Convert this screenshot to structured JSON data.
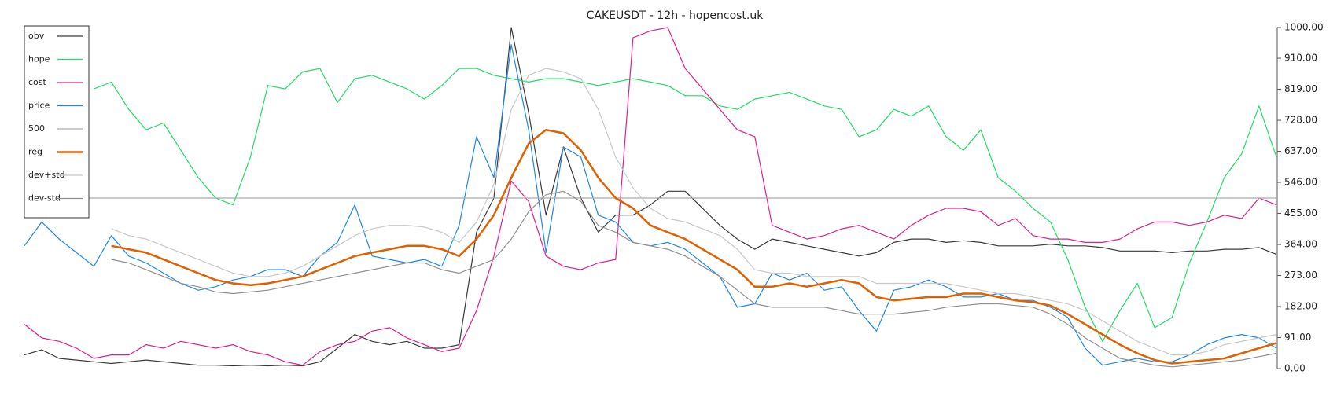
{
  "chart_data": {
    "type": "line",
    "title": "CAKEUSDT - 12h - hopencost.uk",
    "ylim": [
      0,
      1000
    ],
    "yticks": [
      {
        "value": 0,
        "label": "0.00"
      },
      {
        "value": 91,
        "label": "91.00"
      },
      {
        "value": 182,
        "label": "182.00"
      },
      {
        "value": 273,
        "label": "273.00"
      },
      {
        "value": 364,
        "label": "364.00"
      },
      {
        "value": 455,
        "label": "455.00"
      },
      {
        "value": 546,
        "label": "546.00"
      },
      {
        "value": 637,
        "label": "637.00"
      },
      {
        "value": 728,
        "label": "728.00"
      },
      {
        "value": 819,
        "label": "819.00"
      },
      {
        "value": 910,
        "label": "910.00"
      },
      {
        "value": 1000,
        "label": "1000.00"
      }
    ],
    "legend": "upper left",
    "series": [
      {
        "name": "obv",
        "color": "#3a3a3a",
        "values": [
          40,
          55,
          30,
          25,
          20,
          15,
          20,
          25,
          20,
          15,
          10,
          10,
          8,
          10,
          8,
          10,
          8,
          20,
          60,
          100,
          80,
          70,
          80,
          60,
          60,
          70,
          400,
          500,
          1000,
          750,
          450,
          650,
          500,
          400,
          450,
          450,
          480,
          520,
          520,
          470,
          420,
          380,
          350,
          380,
          370,
          360,
          350,
          340,
          330,
          340,
          370,
          380,
          380,
          370,
          375,
          370,
          360,
          360,
          360,
          365,
          360,
          360,
          355,
          345,
          345,
          345,
          340,
          345,
          345,
          350,
          350,
          355,
          335
        ]
      },
      {
        "name": "hope",
        "color": "#22dd66",
        "values": [
          null,
          null,
          null,
          null,
          820,
          840,
          760,
          700,
          720,
          640,
          560,
          500,
          480,
          620,
          830,
          820,
          870,
          880,
          780,
          850,
          860,
          840,
          820,
          790,
          830,
          880,
          880,
          860,
          850,
          840,
          850,
          850,
          840,
          830,
          840,
          850,
          840,
          830,
          800,
          800,
          770,
          760,
          790,
          800,
          810,
          790,
          770,
          760,
          680,
          700,
          760,
          740,
          770,
          680,
          640,
          700,
          560,
          520,
          470,
          430,
          320,
          180,
          80,
          170,
          250,
          120,
          150,
          310,
          430,
          560,
          630,
          770,
          620
        ]
      },
      {
        "name": "cost",
        "color": "#e0208a",
        "values": [
          130,
          90,
          80,
          60,
          30,
          40,
          40,
          70,
          60,
          80,
          70,
          60,
          70,
          50,
          40,
          20,
          10,
          50,
          70,
          80,
          110,
          120,
          90,
          70,
          50,
          60,
          170,
          330,
          550,
          490,
          330,
          300,
          290,
          310,
          320,
          970,
          990,
          1000,
          880,
          820,
          760,
          700,
          680,
          420,
          400,
          380,
          390,
          410,
          420,
          400,
          380,
          420,
          450,
          470,
          470,
          460,
          420,
          440,
          390,
          380,
          380,
          370,
          370,
          380,
          410,
          430,
          430,
          420,
          430,
          450,
          440,
          500,
          480
        ]
      },
      {
        "name": "price",
        "color": "#1e88e5",
        "values": [
          360,
          430,
          380,
          340,
          300,
          390,
          330,
          310,
          280,
          250,
          230,
          240,
          260,
          270,
          290,
          290,
          270,
          330,
          370,
          480,
          330,
          320,
          310,
          320,
          300,
          420,
          680,
          560,
          950,
          700,
          340,
          650,
          620,
          450,
          430,
          370,
          360,
          370,
          350,
          310,
          270,
          180,
          190,
          280,
          260,
          280,
          230,
          240,
          170,
          110,
          230,
          240,
          260,
          240,
          210,
          210,
          220,
          200,
          200,
          180,
          150,
          60,
          10,
          20,
          30,
          20,
          20,
          40,
          70,
          90,
          100,
          90,
          60
        ]
      },
      {
        "name": "500",
        "color": "#aaaaaa",
        "values": [
          500,
          500,
          500,
          500,
          500,
          500,
          500,
          500,
          500,
          500,
          500,
          500,
          500,
          500,
          500,
          500,
          500,
          500,
          500,
          500,
          500,
          500,
          500,
          500,
          500,
          500,
          500,
          500,
          500,
          500,
          500,
          500,
          500,
          500,
          500,
          500,
          500,
          500,
          500,
          500,
          500,
          500,
          500,
          500,
          500,
          500,
          500,
          500,
          500,
          500,
          500,
          500,
          500,
          500,
          500,
          500,
          500,
          500,
          500,
          500,
          500,
          500,
          500,
          500,
          500,
          500,
          500,
          500,
          500,
          500,
          500,
          500,
          500
        ]
      },
      {
        "name": "reg",
        "color": "#e06000",
        "width": 2.5,
        "values": [
          null,
          null,
          null,
          null,
          null,
          360,
          350,
          340,
          320,
          300,
          280,
          260,
          250,
          245,
          250,
          260,
          270,
          290,
          310,
          330,
          340,
          350,
          360,
          360,
          350,
          330,
          380,
          450,
          560,
          660,
          700,
          690,
          640,
          560,
          500,
          470,
          420,
          400,
          380,
          350,
          320,
          290,
          240,
          240,
          250,
          240,
          250,
          260,
          250,
          210,
          200,
          205,
          210,
          210,
          220,
          220,
          210,
          200,
          195,
          185,
          160,
          130,
          100,
          70,
          45,
          25,
          15,
          20,
          25,
          30,
          45,
          60,
          75
        ]
      },
      {
        "name": "dev+std",
        "color": "#c8c8c8",
        "values": [
          null,
          null,
          null,
          null,
          null,
          410,
          390,
          380,
          360,
          340,
          320,
          300,
          280,
          270,
          270,
          280,
          300,
          330,
          360,
          390,
          410,
          420,
          420,
          415,
          400,
          370,
          430,
          540,
          760,
          860,
          880,
          870,
          850,
          760,
          620,
          530,
          470,
          440,
          430,
          410,
          390,
          350,
          290,
          280,
          280,
          270,
          270,
          270,
          270,
          250,
          250,
          250,
          250,
          250,
          240,
          230,
          220,
          220,
          210,
          200,
          190,
          170,
          140,
          110,
          80,
          60,
          40,
          40,
          50,
          70,
          80,
          90,
          100
        ]
      },
      {
        "name": "dev-std",
        "color": "#909090",
        "values": [
          null,
          null,
          null,
          null,
          null,
          320,
          310,
          290,
          270,
          250,
          240,
          225,
          220,
          225,
          230,
          240,
          250,
          260,
          270,
          280,
          290,
          300,
          310,
          310,
          290,
          280,
          300,
          320,
          380,
          460,
          510,
          520,
          490,
          420,
          400,
          370,
          360,
          350,
          330,
          300,
          270,
          230,
          190,
          180,
          180,
          180,
          180,
          170,
          160,
          160,
          160,
          165,
          170,
          180,
          185,
          190,
          190,
          185,
          180,
          160,
          130,
          90,
          60,
          30,
          20,
          10,
          5,
          10,
          15,
          20,
          25,
          35,
          45
        ]
      }
    ]
  }
}
